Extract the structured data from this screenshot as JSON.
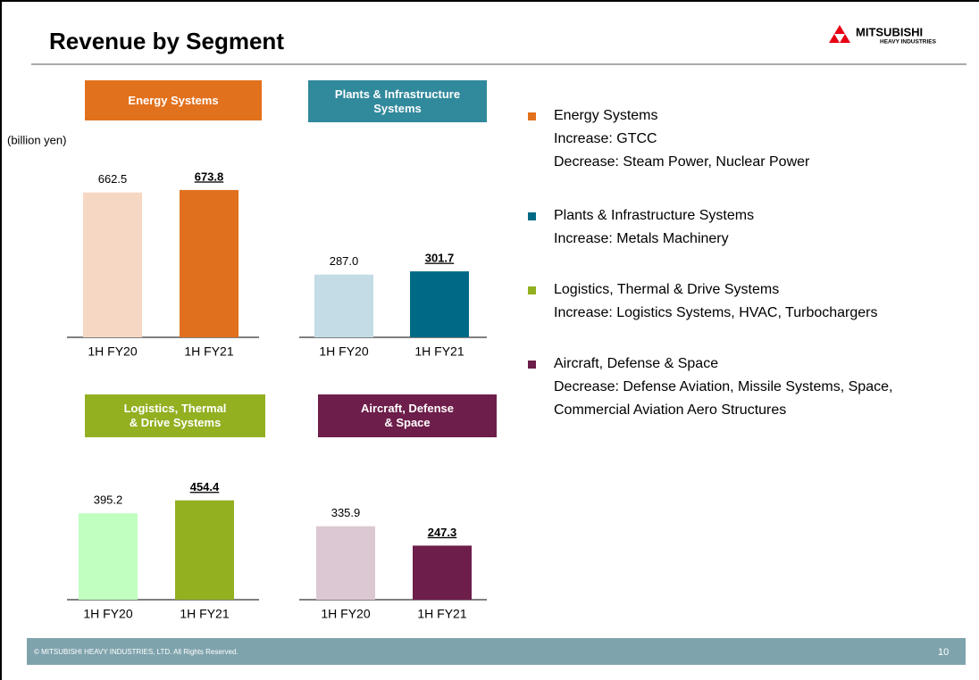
{
  "title": "Revenue by Segment",
  "logo": {
    "name": "MITSUBISHI",
    "sub": "HEAVY INDUSTRIES"
  },
  "unit": "(billion yen)",
  "chart_data": [
    {
      "type": "bar",
      "title": "Energy Systems",
      "header_color": "#e2711d",
      "categories": [
        "1H FY20",
        "1H FY21"
      ],
      "values": [
        662.5,
        673.8
      ],
      "value_labels": [
        "662.5",
        "673.8"
      ],
      "colors": [
        "#f6d7c3",
        "#e0701e"
      ]
    },
    {
      "type": "bar",
      "title": "Plants & Infrastructure\nSystems",
      "header_color": "#31899c",
      "categories": [
        "1H FY20",
        "1H FY21"
      ],
      "values": [
        287.0,
        301.7
      ],
      "value_labels": [
        "287.0",
        "301.7"
      ],
      "colors": [
        "#c3dce5",
        "#006a86"
      ]
    },
    {
      "type": "bar",
      "title": "Logistics, Thermal\n& Drive Systems",
      "header_color": "#93b021",
      "categories": [
        "1H FY20",
        "1H FY21"
      ],
      "values": [
        395.2,
        454.4
      ],
      "value_labels": [
        "395.2",
        "454.4"
      ],
      "colors": [
        "#c0ffc0",
        "#93b021"
      ]
    },
    {
      "type": "bar",
      "title": "Aircraft, Defense\n& Space",
      "header_color": "#6d1e4a",
      "categories": [
        "1H FY20",
        "1H FY21"
      ],
      "values": [
        335.9,
        247.3
      ],
      "value_labels": [
        "335.9",
        "247.3"
      ],
      "colors": [
        "#dcc8d2",
        "#6d1e4a"
      ]
    }
  ],
  "notes": [
    {
      "color": "#e2711d",
      "lines": [
        "Energy Systems",
        "Increase: GTCC",
        "Decrease: Steam Power, Nuclear Power"
      ]
    },
    {
      "color": "#006a86",
      "lines": [
        "Plants & Infrastructure Systems",
        "Increase: Metals Machinery"
      ]
    },
    {
      "color": "#93b021",
      "lines": [
        "Logistics, Thermal & Drive Systems",
        "Increase: Logistics Systems, HVAC, Turbochargers"
      ]
    },
    {
      "color": "#6d1e4a",
      "lines": [
        "Aircraft, Defense & Space",
        "Decrease: Defense Aviation, Missile Systems, Space,",
        "Commercial Aviation Aero Structures"
      ]
    }
  ],
  "footer": "© MITSUBISHI HEAVY INDUSTRIES, LTD.  All Rights Reserved.",
  "page": "10"
}
